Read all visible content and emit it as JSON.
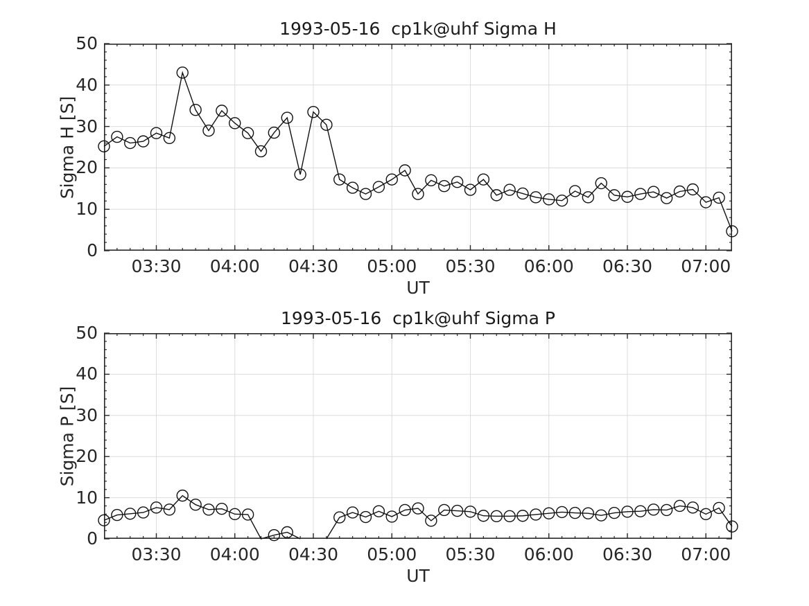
{
  "figure": {
    "background": "#ffffff",
    "axis_color": "#262626",
    "grid_color": "#dcdcdc",
    "line_color": "#111111",
    "marker": "open-circle"
  },
  "chart_data": [
    {
      "type": "line",
      "title": "1993-05-16  cp1k@uhf Sigma H",
      "xlabel": "UT",
      "ylabel": "Sigma H [S]",
      "ylim": [
        0,
        50
      ],
      "yticks": [
        0,
        10,
        20,
        30,
        40,
        50
      ],
      "y_minor_step": 2,
      "xlim": [
        "03:10",
        "07:10"
      ],
      "xticks": [
        "03:30",
        "04:00",
        "04:30",
        "05:00",
        "05:30",
        "06:00",
        "06:30",
        "07:00"
      ],
      "x_minor_step_minutes": 5,
      "grid": true,
      "legend": null,
      "x": [
        "03:10",
        "03:15",
        "03:20",
        "03:25",
        "03:30",
        "03:35",
        "03:40",
        "03:45",
        "03:50",
        "03:55",
        "04:00",
        "04:05",
        "04:10",
        "04:15",
        "04:20",
        "04:25",
        "04:30",
        "04:35",
        "04:40",
        "04:45",
        "04:50",
        "04:55",
        "05:00",
        "05:05",
        "05:10",
        "05:15",
        "05:20",
        "05:25",
        "05:30",
        "05:35",
        "05:40",
        "05:45",
        "05:50",
        "05:55",
        "06:00",
        "06:05",
        "06:10",
        "06:15",
        "06:20",
        "06:25",
        "06:30",
        "06:35",
        "06:40",
        "06:45",
        "06:50",
        "06:55",
        "07:00",
        "07:05",
        "07:10"
      ],
      "values": [
        25.2,
        27.5,
        26.0,
        26.4,
        28.4,
        27.2,
        43.0,
        34.0,
        29.0,
        33.8,
        30.8,
        28.4,
        24.0,
        28.5,
        32.1,
        18.4,
        33.5,
        30.4,
        17.2,
        15.2,
        13.7,
        15.4,
        17.2,
        19.4,
        13.7,
        17.0,
        15.6,
        16.6,
        14.7,
        17.2,
        13.4,
        14.7,
        13.8,
        12.9,
        12.4,
        12.1,
        14.4,
        12.9,
        16.3,
        13.4,
        13.0,
        13.7,
        14.2,
        12.7,
        14.3,
        14.8,
        11.7,
        12.8,
        4.7
      ]
    },
    {
      "type": "line",
      "title": "1993-05-16  cp1k@uhf Sigma P",
      "xlabel": "UT",
      "ylabel": "Sigma P [S]",
      "ylim": [
        0,
        50
      ],
      "yticks": [
        0,
        10,
        20,
        30,
        40,
        50
      ],
      "y_minor_step": 2,
      "xlim": [
        "03:10",
        "07:10"
      ],
      "xticks": [
        "03:30",
        "04:00",
        "04:30",
        "05:00",
        "05:30",
        "06:00",
        "06:30",
        "07:00"
      ],
      "x_minor_step_minutes": 5,
      "grid": true,
      "legend": null,
      "x": [
        "03:10",
        "03:15",
        "03:20",
        "03:25",
        "03:30",
        "03:35",
        "03:40",
        "03:45",
        "03:50",
        "03:55",
        "04:00",
        "04:05",
        "04:10",
        "04:15",
        "04:20",
        "04:25",
        "04:30",
        "04:35",
        "04:40",
        "04:45",
        "04:50",
        "04:55",
        "05:00",
        "05:05",
        "05:10",
        "05:15",
        "05:20",
        "05:25",
        "05:30",
        "05:35",
        "05:40",
        "05:45",
        "05:50",
        "05:55",
        "06:00",
        "06:05",
        "06:10",
        "06:15",
        "06:20",
        "06:25",
        "06:30",
        "06:35",
        "06:40",
        "06:45",
        "06:50",
        "06:55",
        "07:00",
        "07:05",
        "07:10"
      ],
      "values": [
        4.5,
        5.8,
        6.1,
        6.4,
        7.6,
        7.1,
        10.5,
        8.3,
        7.1,
        7.3,
        6.0,
        5.9,
        0,
        0.9,
        1.6,
        0,
        null,
        0,
        5.2,
        6.4,
        5.3,
        6.7,
        5.4,
        7.0,
        7.4,
        4.4,
        7.0,
        6.8,
        6.6,
        5.6,
        5.5,
        5.5,
        5.6,
        5.9,
        6.2,
        6.5,
        6.3,
        6.2,
        5.7,
        6.3,
        6.6,
        6.7,
        7.1,
        7.0,
        8.0,
        7.6,
        6.0,
        7.5,
        3.0
      ]
    }
  ]
}
